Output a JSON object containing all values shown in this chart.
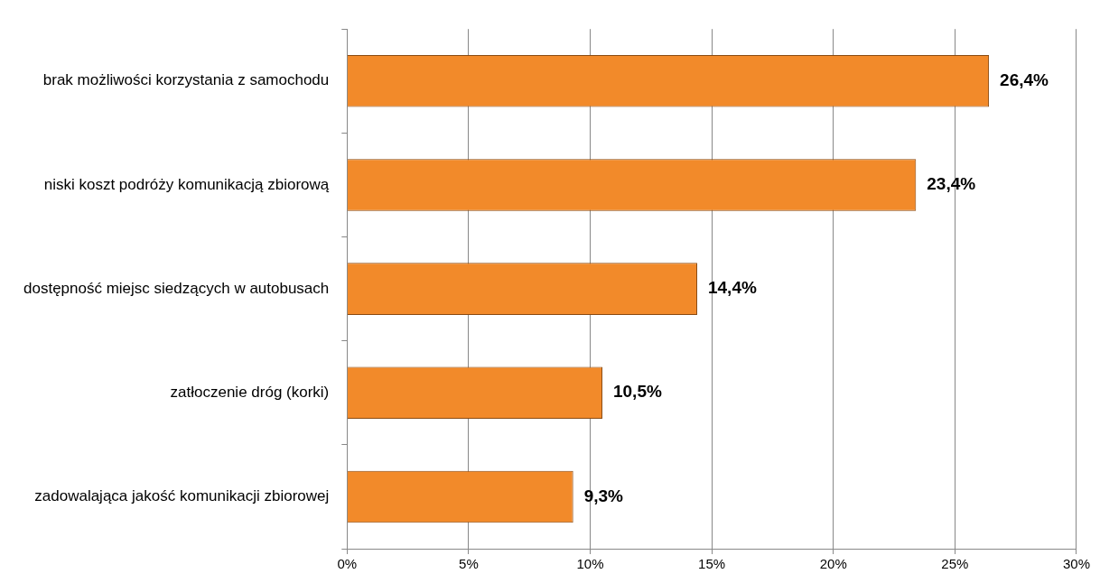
{
  "chart_data": {
    "type": "bar",
    "orientation": "horizontal",
    "categories": [
      "brak możliwości korzystania z samochodu",
      "niski koszt podróży komunikacją zbiorową",
      "dostępność miejsc siedzących w autobusach",
      "zatłoczenie dróg (korki)",
      "zadowalająca jakość komunikacji zbiorowej"
    ],
    "values": [
      26.4,
      23.4,
      14.4,
      10.5,
      9.3
    ],
    "value_labels": [
      "26,4%",
      "23,4%",
      "14,4%",
      "10,5%",
      "9,3%"
    ],
    "color": "#f28a2a",
    "xlim": [
      0,
      30
    ],
    "xticks": [
      {
        "value": 0,
        "label": "0%"
      },
      {
        "value": 5,
        "label": "5%"
      },
      {
        "value": 10,
        "label": "10%"
      },
      {
        "value": 15,
        "label": "15%"
      },
      {
        "value": 20,
        "label": "20%"
      },
      {
        "value": 25,
        "label": "25%"
      },
      {
        "value": 30,
        "label": "30%"
      }
    ],
    "grid": "x",
    "legend": false
  }
}
